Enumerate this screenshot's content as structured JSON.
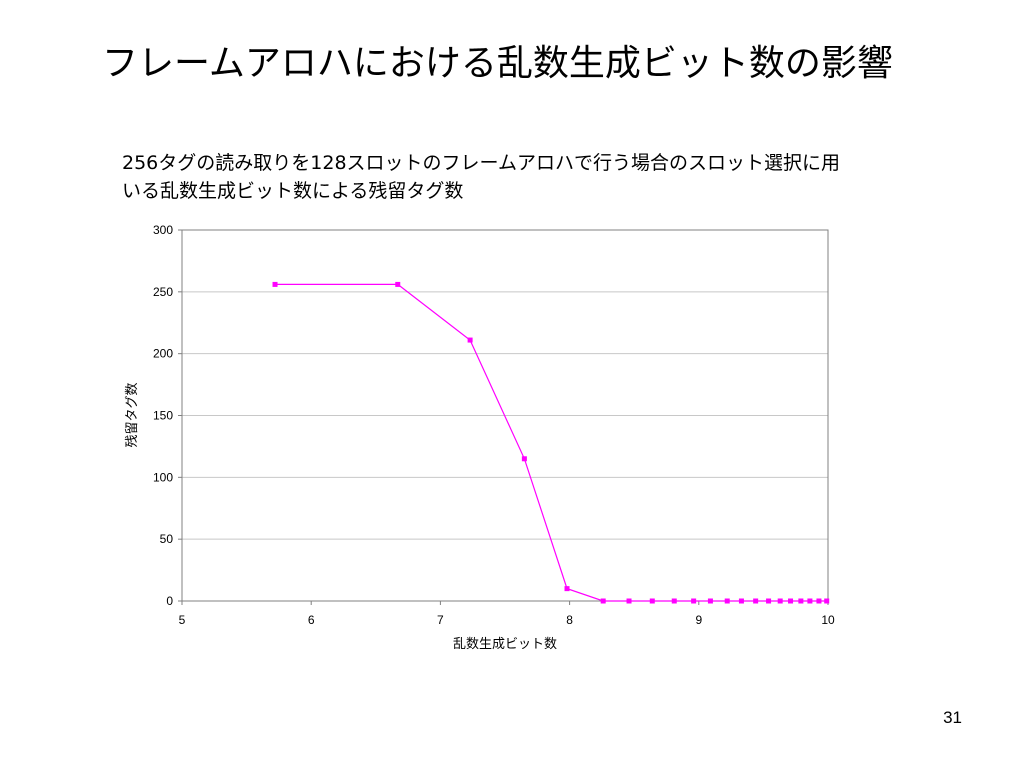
{
  "slide": {
    "title": "フレームアロハにおける乱数生成ビット数の影響",
    "page_number": "31"
  },
  "chart_data": {
    "type": "line",
    "title": "256タグの読み取りを128スロットのフレームアロハで行う場合のスロット選択に用いる乱数生成ビット数による残留タグ数",
    "xlabel": "乱数生成ビット数",
    "ylabel": "残留タグ数",
    "xlim": [
      5,
      10
    ],
    "ylim": [
      0,
      300
    ],
    "x_ticks": [
      5,
      6,
      7,
      8,
      9,
      10
    ],
    "y_ticks": [
      0,
      50,
      100,
      150,
      200,
      250,
      300
    ],
    "grid": "horizontal",
    "legend": "none",
    "series_color": "#ff00ff",
    "x": [
      5.72,
      6.67,
      7.23,
      7.65,
      7.98,
      8.26,
      8.46,
      8.64,
      8.81,
      8.96,
      9.09,
      9.22,
      9.33,
      9.44,
      9.54,
      9.63,
      9.71,
      9.79,
      9.86,
      9.93,
      9.99
    ],
    "y": [
      256,
      256,
      211,
      115,
      10,
      0,
      0,
      0,
      0,
      0,
      0,
      0,
      0,
      0,
      0,
      0,
      0,
      0,
      0,
      0,
      0
    ]
  }
}
